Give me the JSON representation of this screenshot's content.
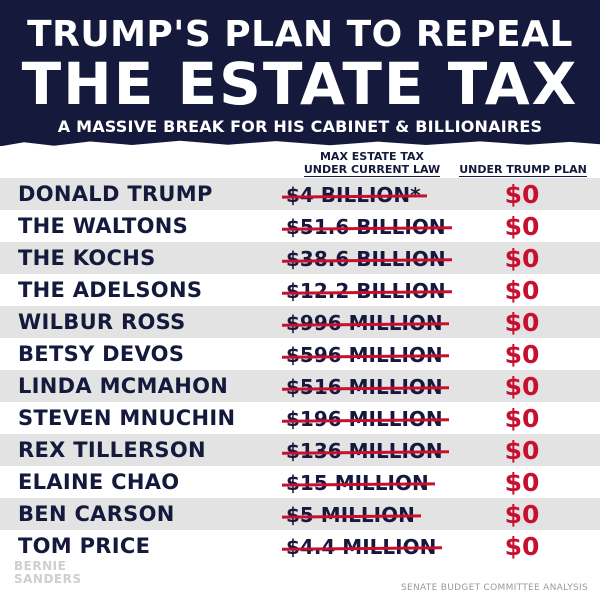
{
  "header": {
    "line1": "TRUMP'S PLAN TO REPEAL",
    "line2": "THE ESTATE TAX",
    "subtitle": "A MASSIVE BREAK FOR HIS CABINET & BILLIONAIRES"
  },
  "columns": {
    "current_line1": "MAX ESTATE TAX",
    "current_line2": "UNDER CURRENT LAW",
    "trump": "UNDER TRUMP PLAN"
  },
  "rows": [
    {
      "name": "DONALD TRUMP",
      "current": "$4 BILLION*",
      "trump": "$0"
    },
    {
      "name": "THE WALTONS",
      "current": "$51.6 BILLION",
      "trump": "$0"
    },
    {
      "name": "THE KOCHS",
      "current": "$38.6 BILLION",
      "trump": "$0"
    },
    {
      "name": "THE ADELSONS",
      "current": "$12.2 BILLION",
      "trump": "$0"
    },
    {
      "name": "WILBUR ROSS",
      "current": "$996 MILLION",
      "trump": "$0"
    },
    {
      "name": "BETSY DEVOS",
      "current": "$596 MILLION",
      "trump": "$0"
    },
    {
      "name": "LINDA MCMAHON",
      "current": "$516 MILLION",
      "trump": "$0"
    },
    {
      "name": "STEVEN MNUCHIN",
      "current": "$196 MILLION",
      "trump": "$0"
    },
    {
      "name": "REX TILLERSON",
      "current": "$136 MILLION",
      "trump": "$0"
    },
    {
      "name": "ELAINE CHAO",
      "current": "$15 MILLION",
      "trump": "$0"
    },
    {
      "name": "BEN CARSON",
      "current": "$5 MILLION",
      "trump": "$0"
    },
    {
      "name": "TOM PRICE",
      "current": "$4.4 MILLION",
      "trump": "$0"
    }
  ],
  "footer": {
    "logo_line1": "BERNIE",
    "logo_line2": "SANDERS",
    "source": "SENATE BUDGET COMMITTEE ANALYSIS"
  },
  "colors": {
    "navy": "#151a3d",
    "red": "#c8102e",
    "row_shade": "#e3e3e3"
  }
}
